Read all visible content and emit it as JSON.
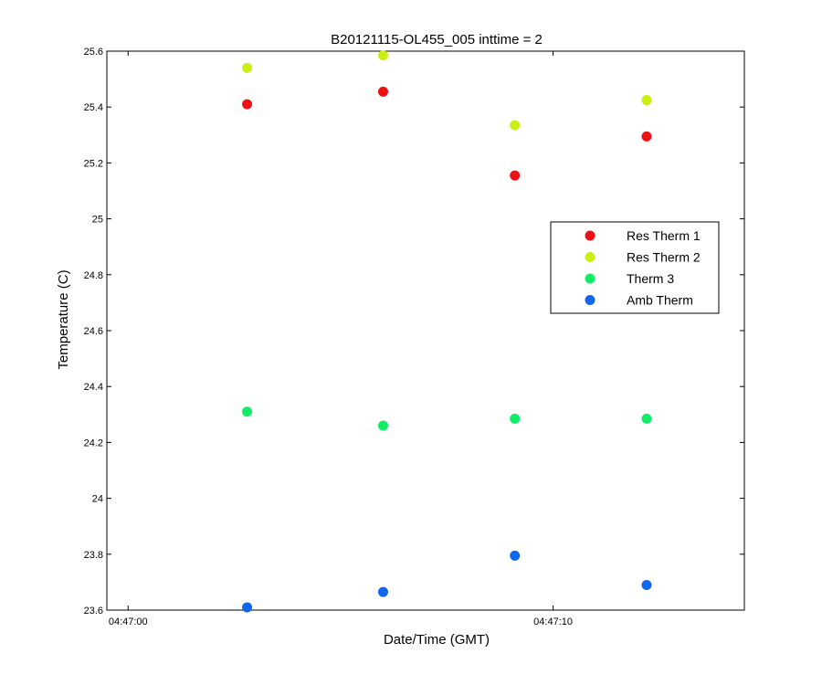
{
  "chart_data": {
    "type": "scatter",
    "title": "B20121115-OL455_005 inttime = 2",
    "xlabel": "Date/Time (GMT)",
    "ylabel": "Temperature (C)",
    "x_axis": {
      "type": "time",
      "range": [
        "04:46:59.5",
        "04:47:14.5"
      ],
      "ticks": [
        {
          "value": "04:47:00",
          "label": "04:47:00"
        },
        {
          "value": "04:47:10",
          "label": "04:47:10"
        }
      ]
    },
    "y_axis": {
      "range": [
        23.6,
        25.6
      ],
      "ticks": [
        {
          "value": 23.6,
          "label": "23.6"
        },
        {
          "value": 23.8,
          "label": "23.8"
        },
        {
          "value": 24.0,
          "label": "24"
        },
        {
          "value": 24.2,
          "label": "24.2"
        },
        {
          "value": 24.4,
          "label": "24.4"
        },
        {
          "value": 24.6,
          "label": "24.6"
        },
        {
          "value": 24.8,
          "label": "24.8"
        },
        {
          "value": 25.0,
          "label": "25"
        },
        {
          "value": 25.2,
          "label": "25.2"
        },
        {
          "value": 25.4,
          "label": "25.4"
        },
        {
          "value": 25.6,
          "label": "25.6"
        }
      ]
    },
    "grid": false,
    "legend_position": "right-middle",
    "x": [
      "04:47:02.8",
      "04:47:06.0",
      "04:47:09.1",
      "04:47:12.2"
    ],
    "series": [
      {
        "name": "Res Therm 1",
        "color": "#ee1111",
        "values": [
          25.41,
          25.455,
          25.155,
          25.295
        ]
      },
      {
        "name": "Res Therm 2",
        "color": "#ccee11",
        "values": [
          25.54,
          25.585,
          25.335,
          25.425
        ]
      },
      {
        "name": "Therm 3",
        "color": "#11ee66",
        "values": [
          24.31,
          24.26,
          24.285,
          24.285
        ]
      },
      {
        "name": "Amb Therm",
        "color": "#1166ee",
        "values": [
          23.61,
          23.665,
          23.795,
          23.69
        ]
      }
    ]
  }
}
